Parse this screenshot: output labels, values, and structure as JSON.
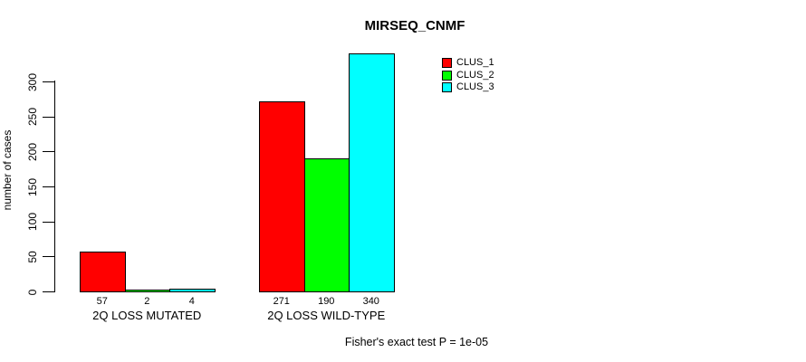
{
  "chart_data": {
    "type": "bar",
    "title": "MIRSEQ_CNMF",
    "ylabel": "number of cases",
    "xlabel": "",
    "yticks": [
      0,
      50,
      100,
      150,
      200,
      250,
      300
    ],
    "ylim": [
      0,
      341
    ],
    "grid": false,
    "legend_position": "inside-top-right",
    "categories": [
      "2Q LOSS MUTATED",
      "2Q LOSS WILD-TYPE"
    ],
    "series": [
      {
        "name": "CLUS_1",
        "color": "#ff0000",
        "values": [
          57,
          271
        ]
      },
      {
        "name": "CLUS_2",
        "color": "#00ff00",
        "values": [
          2,
          190
        ]
      },
      {
        "name": "CLUS_3",
        "color": "#00ffff",
        "values": [
          4,
          340
        ]
      }
    ],
    "annotation": "Fisher's exact test P = 1e-05"
  },
  "colors": {
    "background": "#ffffff",
    "axis": "#000000",
    "bar_border": "#000000",
    "clus_1": "#ff0000",
    "clus_2": "#00ff00",
    "clus_3": "#00ffff"
  }
}
